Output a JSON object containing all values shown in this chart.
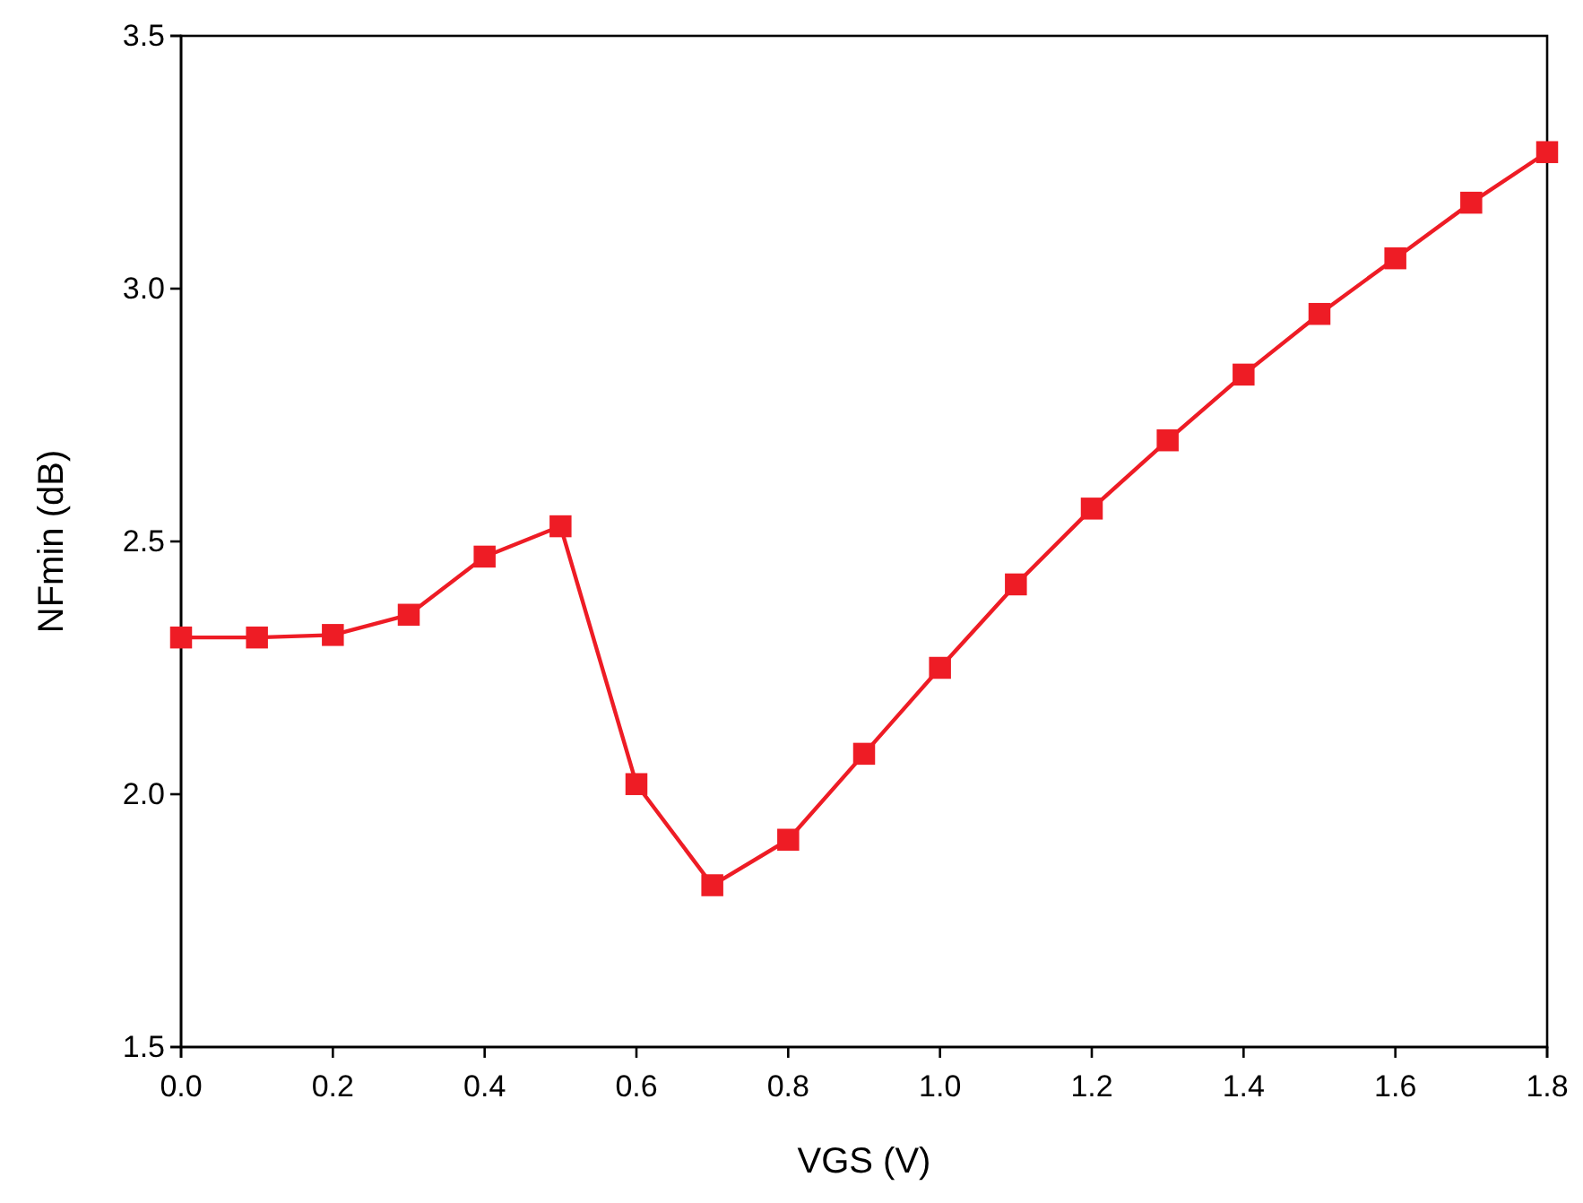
{
  "chart_data": {
    "type": "line",
    "xlabel": "VGS (V)",
    "ylabel": "NFmin (dB)",
    "x": [
      0,
      0.1,
      0.2,
      0.3,
      0.4,
      0.5,
      0.6,
      0.7,
      0.8,
      0.9,
      1.0,
      1.1,
      1.2,
      1.3,
      1.4,
      1.5,
      1.6,
      1.7,
      1.8
    ],
    "series": [
      {
        "color": "#ee1c25",
        "values": [
          2.31,
          2.31,
          2.315,
          2.355,
          2.47,
          2.53,
          2.02,
          1.82,
          1.91,
          2.08,
          2.25,
          2.415,
          2.565,
          2.7,
          2.83,
          2.95,
          3.06,
          3.17,
          3.27
        ]
      }
    ],
    "xlim": [
      0,
      1.8
    ],
    "xticks": [
      {
        "value": 0,
        "label": "0.0"
      },
      {
        "value": 0.2,
        "label": "0.2"
      },
      {
        "value": 0.4,
        "label": "0.4"
      },
      {
        "value": 0.6,
        "label": "0.6"
      },
      {
        "value": 0.8,
        "label": "0.8"
      },
      {
        "value": 1.0,
        "label": "1.0"
      },
      {
        "value": 1.2,
        "label": "1.2"
      },
      {
        "value": 1.4,
        "label": "1.4"
      },
      {
        "value": 1.6,
        "label": "1.6"
      },
      {
        "value": 1.8,
        "label": "1.8"
      }
    ],
    "ylim": [
      1.5,
      3.5
    ],
    "yticks": [
      {
        "value": 1.5,
        "label": "1.5"
      },
      {
        "value": 2.0,
        "label": "2.0"
      },
      {
        "value": 2.5,
        "label": "2.5"
      },
      {
        "value": 3.0,
        "label": "3.0"
      },
      {
        "value": 3.5,
        "label": "3.5"
      }
    ],
    "marker": "square",
    "line_style": "solid"
  }
}
